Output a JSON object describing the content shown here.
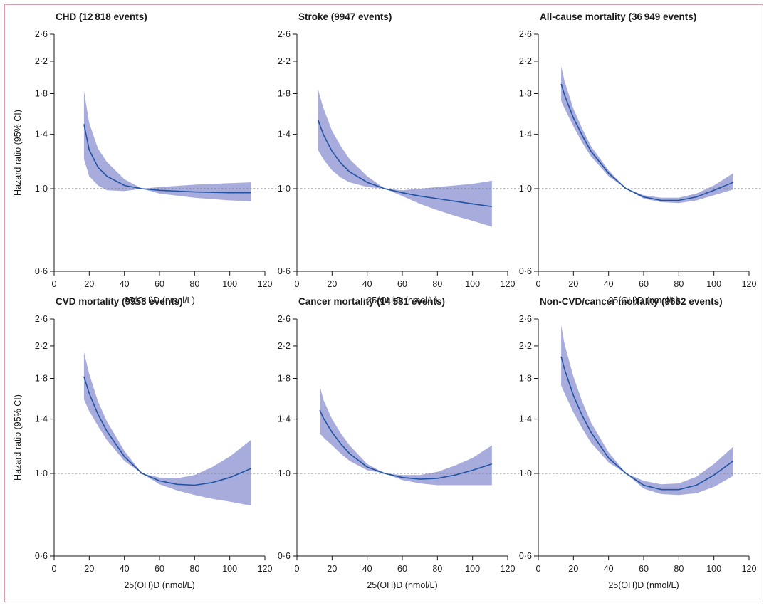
{
  "chart_data": [
    {
      "type": "line",
      "title": "CHD (12 818 events)",
      "xlabel": "25(OH)D (nmol/L)",
      "ylabel": "Hazard ratio (95% CI)",
      "xlim": [
        0,
        120
      ],
      "ylim": [
        0.6,
        2.6
      ],
      "y_scale": "log",
      "x_ticks": [
        0,
        20,
        40,
        60,
        80,
        100,
        120
      ],
      "x_tick_labels": [
        "0",
        "20",
        "40",
        "60",
        "80",
        "100",
        "120"
      ],
      "y_ticks": [
        0.6,
        1.0,
        1.4,
        1.8,
        2.2,
        2.6
      ],
      "y_tick_labels": [
        "0·6",
        "1·0",
        "1·4",
        "1·8",
        "2·2",
        "2·6"
      ],
      "reference_line": 1.0,
      "x": [
        17,
        20,
        25,
        30,
        40,
        50,
        60,
        80,
        100,
        112
      ],
      "hr": [
        1.49,
        1.27,
        1.14,
        1.08,
        1.02,
        1.0,
        0.99,
        0.98,
        0.975,
        0.975
      ],
      "ci_lower": [
        1.2,
        1.08,
        1.02,
        0.99,
        0.985,
        1.0,
        0.97,
        0.945,
        0.93,
        0.925
      ],
      "ci_upper": [
        1.83,
        1.5,
        1.28,
        1.18,
        1.06,
        1.0,
        1.01,
        1.025,
        1.035,
        1.04
      ]
    },
    {
      "type": "line",
      "title": "Stroke (9947 events)",
      "xlabel": "25(OH)D (nmol/L)",
      "ylabel": "",
      "xlim": [
        0,
        120
      ],
      "ylim": [
        0.6,
        2.6
      ],
      "y_scale": "log",
      "x_ticks": [
        0,
        20,
        40,
        60,
        80,
        100,
        120
      ],
      "x_tick_labels": [
        "0",
        "20",
        "40",
        "60",
        "80",
        "100",
        "120"
      ],
      "y_ticks": [
        0.6,
        1.0,
        1.4,
        1.8,
        2.2,
        2.6
      ],
      "y_tick_labels": [
        "0·6",
        "1·0",
        "1·4",
        "1·8",
        "2·2",
        "2·6"
      ],
      "reference_line": 1.0,
      "x": [
        12,
        15,
        20,
        25,
        30,
        40,
        50,
        60,
        70,
        80,
        90,
        100,
        111
      ],
      "hr": [
        1.53,
        1.4,
        1.26,
        1.17,
        1.11,
        1.04,
        1.0,
        0.975,
        0.955,
        0.94,
        0.925,
        0.91,
        0.895
      ],
      "ci_lower": [
        1.27,
        1.2,
        1.12,
        1.07,
        1.04,
        1.01,
        1.0,
        0.955,
        0.91,
        0.875,
        0.845,
        0.82,
        0.79
      ],
      "ci_upper": [
        1.85,
        1.65,
        1.43,
        1.3,
        1.2,
        1.08,
        1.0,
        0.99,
        1.0,
        1.01,
        1.02,
        1.03,
        1.05
      ]
    },
    {
      "type": "line",
      "title": "All-cause mortality (36 949 events)",
      "xlabel": "25(OH)D (nmol/L)",
      "ylabel": "",
      "xlim": [
        0,
        120
      ],
      "ylim": [
        0.6,
        2.6
      ],
      "y_scale": "log",
      "x_ticks": [
        0,
        20,
        40,
        60,
        80,
        100,
        120
      ],
      "x_tick_labels": [
        "0",
        "20",
        "40",
        "60",
        "80",
        "100",
        "120"
      ],
      "y_ticks": [
        0.6,
        1.0,
        1.4,
        1.8,
        2.2,
        2.6
      ],
      "y_tick_labels": [
        "0·6",
        "1·0",
        "1·4",
        "1·8",
        "2·2",
        "2·6"
      ],
      "reference_line": 1.0,
      "x": [
        13,
        15,
        20,
        25,
        30,
        40,
        50,
        60,
        70,
        80,
        90,
        100,
        111
      ],
      "hr": [
        1.91,
        1.78,
        1.55,
        1.39,
        1.26,
        1.1,
        1.0,
        0.95,
        0.93,
        0.93,
        0.95,
        0.99,
        1.04
      ],
      "ci_lower": [
        1.72,
        1.64,
        1.47,
        1.33,
        1.22,
        1.08,
        1.0,
        0.94,
        0.92,
        0.915,
        0.93,
        0.96,
        0.995
      ],
      "ci_upper": [
        2.13,
        1.94,
        1.64,
        1.45,
        1.3,
        1.12,
        1.0,
        0.96,
        0.945,
        0.945,
        0.97,
        1.02,
        1.1
      ]
    },
    {
      "type": "line",
      "title": "CVD mortality (9953 events)",
      "xlabel": "25(OH)D (nmol/L)",
      "ylabel": "Hazard ratio (95% CI)",
      "xlim": [
        0,
        120
      ],
      "ylim": [
        0.6,
        2.6
      ],
      "y_scale": "log",
      "x_ticks": [
        0,
        20,
        40,
        60,
        80,
        100,
        120
      ],
      "x_tick_labels": [
        "0",
        "20",
        "40",
        "60",
        "80",
        "100",
        "120"
      ],
      "y_ticks": [
        0.6,
        1.0,
        1.4,
        1.8,
        2.2,
        2.6
      ],
      "y_tick_labels": [
        "0·6",
        "1·0",
        "1·4",
        "1·8",
        "2·2",
        "2·6"
      ],
      "reference_line": 1.0,
      "x": [
        17,
        20,
        25,
        30,
        40,
        50,
        60,
        70,
        80,
        90,
        100,
        112
      ],
      "hr": [
        1.82,
        1.64,
        1.44,
        1.3,
        1.11,
        1.0,
        0.955,
        0.935,
        0.93,
        0.945,
        0.975,
        1.03
      ],
      "ci_lower": [
        1.58,
        1.47,
        1.34,
        1.23,
        1.08,
        1.0,
        0.935,
        0.9,
        0.875,
        0.855,
        0.84,
        0.82
      ],
      "ci_upper": [
        2.12,
        1.85,
        1.56,
        1.38,
        1.15,
        1.0,
        0.975,
        0.97,
        0.99,
        1.04,
        1.11,
        1.23
      ]
    },
    {
      "type": "line",
      "title": "Cancer mortality (14 581 events)",
      "xlabel": "25(OH)D (nmol/L)",
      "ylabel": "",
      "xlim": [
        0,
        120
      ],
      "ylim": [
        0.6,
        2.6
      ],
      "y_scale": "log",
      "x_ticks": [
        0,
        20,
        40,
        60,
        80,
        100,
        120
      ],
      "x_tick_labels": [
        "0",
        "20",
        "40",
        "60",
        "80",
        "100",
        "120"
      ],
      "y_ticks": [
        0.6,
        1.0,
        1.4,
        1.8,
        2.2,
        2.6
      ],
      "y_tick_labels": [
        "0·6",
        "1·0",
        "1·4",
        "1·8",
        "2·2",
        "2·6"
      ],
      "reference_line": 1.0,
      "x": [
        13,
        15,
        20,
        25,
        30,
        40,
        50,
        60,
        70,
        80,
        90,
        100,
        111
      ],
      "hr": [
        1.48,
        1.41,
        1.29,
        1.2,
        1.13,
        1.04,
        1.0,
        0.975,
        0.965,
        0.97,
        0.99,
        1.02,
        1.06
      ],
      "ci_lower": [
        1.28,
        1.25,
        1.19,
        1.13,
        1.08,
        1.02,
        1.0,
        0.96,
        0.94,
        0.93,
        0.93,
        0.93,
        0.93
      ],
      "ci_upper": [
        1.72,
        1.58,
        1.4,
        1.28,
        1.19,
        1.06,
        1.0,
        0.99,
        0.99,
        1.01,
        1.05,
        1.1,
        1.19
      ]
    },
    {
      "type": "line",
      "title": "Non-CVD/cancer mortality (9662 events)",
      "xlabel": "25(OH)D (nmol/L)",
      "ylabel": "",
      "xlim": [
        0,
        120
      ],
      "ylim": [
        0.6,
        2.6
      ],
      "y_scale": "log",
      "x_ticks": [
        0,
        20,
        40,
        60,
        80,
        100,
        120
      ],
      "x_tick_labels": [
        "0",
        "20",
        "40",
        "60",
        "80",
        "100",
        "120"
      ],
      "y_ticks": [
        0.6,
        1.0,
        1.4,
        1.8,
        2.2,
        2.6
      ],
      "y_tick_labels": [
        "0·6",
        "1·0",
        "1·4",
        "1·8",
        "2·2",
        "2·6"
      ],
      "reference_line": 1.0,
      "x": [
        13,
        15,
        20,
        25,
        30,
        40,
        50,
        60,
        70,
        80,
        90,
        100,
        111
      ],
      "hr": [
        2.06,
        1.9,
        1.62,
        1.43,
        1.29,
        1.1,
        1.0,
        0.93,
        0.905,
        0.905,
        0.93,
        0.99,
        1.08
      ],
      "ci_lower": [
        1.72,
        1.64,
        1.46,
        1.32,
        1.21,
        1.07,
        1.0,
        0.91,
        0.88,
        0.875,
        0.885,
        0.92,
        0.985
      ],
      "ci_upper": [
        2.5,
        2.22,
        1.82,
        1.56,
        1.37,
        1.14,
        1.0,
        0.955,
        0.935,
        0.94,
        0.98,
        1.06,
        1.18
      ]
    }
  ]
}
